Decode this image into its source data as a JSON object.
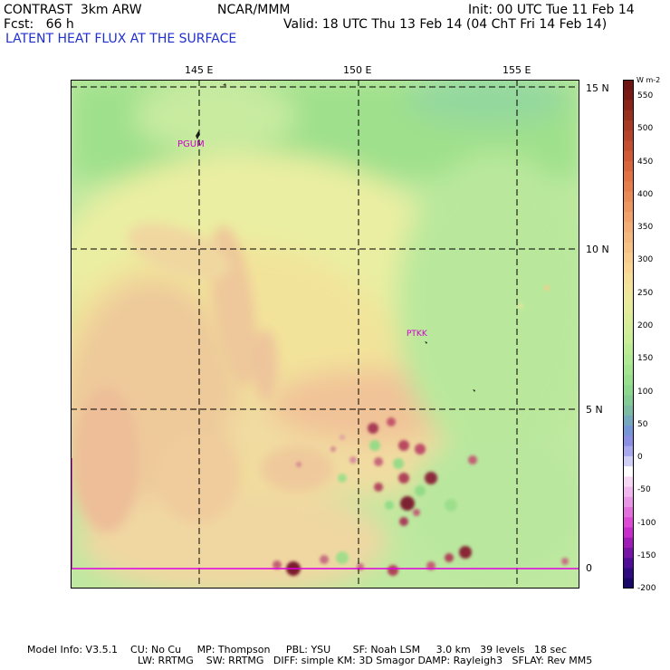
{
  "header": {
    "model": "CONTRAST  3km ARW",
    "org": "NCAR/MMM",
    "init": "Init: 00 UTC Tue 11 Feb 14",
    "fcst": "Fcst:   66 h",
    "valid": "Valid: 18 UTC Thu 13 Feb 14 (04 ChT Fri 14 Feb 14)",
    "field_title": "LATENT HEAT FLUX AT THE SURFACE"
  },
  "map": {
    "lon_labels": [
      "145 E",
      "150 E",
      "155 E"
    ],
    "lat_labels": [
      "15 N",
      "10 N",
      "5 N",
      "0"
    ],
    "stations": [
      {
        "id": "PGUM",
        "color": "#d000d0"
      },
      {
        "id": "PTKK",
        "color": "#d000d0"
      }
    ]
  },
  "colorbar": {
    "units": "W m-2",
    "labels": [
      "550",
      "500",
      "450",
      "400",
      "350",
      "300",
      "250",
      "200",
      "150",
      "100",
      "50",
      "0",
      "-50",
      "-100",
      "-150",
      "-200"
    ],
    "min": -200,
    "max": 575
  },
  "footer": {
    "line1": "Model Info: V3.5.1    CU: No Cu     MP: Thompson     PBL: YSU       SF: Noah LSM     3.0 km   39 levels   18 sec",
    "line2": "LW: RRTMG    SW: RRTMG   DIFF: simple KM: 3D Smagor DAMP: Rayleigh3   SFLAY: Rev MM5"
  }
}
